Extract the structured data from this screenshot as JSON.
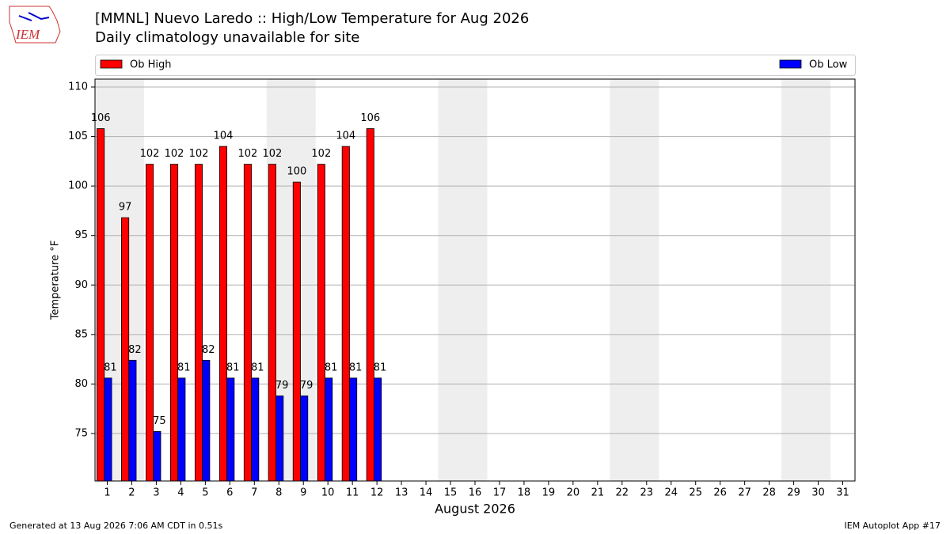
{
  "chart_data": {
    "type": "bar",
    "title": "[MMNL] Nuevo Laredo :: High/Low Temperature for Aug 2026",
    "subtitle": "Daily climatology unavailable for site",
    "ylabel": "Temperature °F",
    "xlabel": "August 2026",
    "logo": "IEM",
    "footnote_left": "Generated at 13 Aug 2026 7:06 AM CDT in 0.51s",
    "footnote_right": "IEM Autoplot App #17",
    "categories": [
      "1",
      "2",
      "3",
      "4",
      "5",
      "6",
      "7",
      "8",
      "9",
      "10",
      "11",
      "12",
      "13",
      "14",
      "15",
      "16",
      "17",
      "18",
      "19",
      "20",
      "21",
      "22",
      "23",
      "24",
      "25",
      "26",
      "27",
      "28",
      "29",
      "30",
      "31"
    ],
    "series": [
      {
        "name": "Ob High",
        "color": "#ff0000",
        "values": [
          105.8,
          96.8,
          102.2,
          102.2,
          102.2,
          104.0,
          102.2,
          102.2,
          100.4,
          102.2,
          104.0,
          105.8,
          null,
          null,
          null,
          null,
          null,
          null,
          null,
          null,
          null,
          null,
          null,
          null,
          null,
          null,
          null,
          null,
          null,
          null,
          null
        ],
        "value_labels": [
          "106",
          "97",
          "102",
          "102",
          "102",
          "104",
          "102",
          "102",
          "100",
          "102",
          "104",
          "106",
          null,
          null,
          null,
          null,
          null,
          null,
          null,
          null,
          null,
          null,
          null,
          null,
          null,
          null,
          null,
          null,
          null,
          null,
          null
        ]
      },
      {
        "name": "Ob Low",
        "color": "#0000ff",
        "values": [
          80.6,
          82.4,
          75.2,
          80.6,
          82.4,
          80.6,
          80.6,
          78.8,
          78.8,
          80.6,
          80.6,
          80.6,
          null,
          null,
          null,
          null,
          null,
          null,
          null,
          null,
          null,
          null,
          null,
          null,
          null,
          null,
          null,
          null,
          null,
          null,
          null
        ],
        "value_labels": [
          "81",
          "82",
          "75",
          "81",
          "82",
          "81",
          "81",
          "79",
          "79",
          "81",
          "81",
          "81",
          null,
          null,
          null,
          null,
          null,
          null,
          null,
          null,
          null,
          null,
          null,
          null,
          null,
          null,
          null,
          null,
          null,
          null,
          null
        ]
      }
    ],
    "ylim": [
      70.2,
      110.8
    ],
    "yticks": [
      75,
      80,
      85,
      90,
      95,
      100,
      105,
      110
    ],
    "grid": true,
    "legend": "top"
  }
}
